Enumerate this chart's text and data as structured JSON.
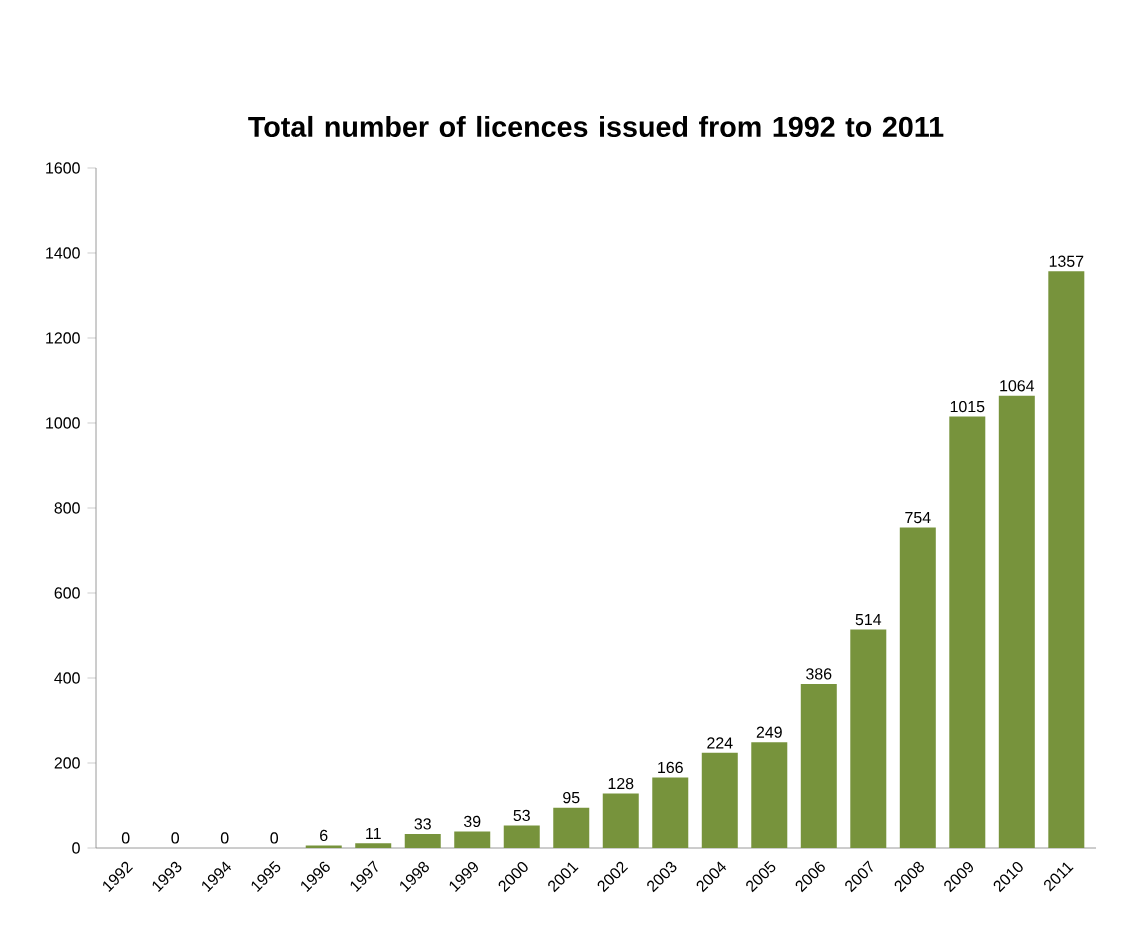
{
  "chart_data": {
    "type": "bar",
    "title": "Total number of licences issued from 1992 to 2011",
    "categories": [
      "1992",
      "1993",
      "1994",
      "1995",
      "1996",
      "1997",
      "1998",
      "1999",
      "2000",
      "2001",
      "2002",
      "2003",
      "2004",
      "2005",
      "2006",
      "2007",
      "2008",
      "2009",
      "2010",
      "2011"
    ],
    "values": [
      0,
      0,
      0,
      0,
      6,
      11,
      33,
      39,
      53,
      95,
      128,
      166,
      224,
      249,
      386,
      514,
      754,
      1015,
      1064,
      1357
    ],
    "color": "#77933c",
    "ylim": [
      0,
      1600
    ],
    "yticks": [
      0,
      200,
      400,
      600,
      800,
      1000,
      1200,
      1400,
      1600
    ],
    "data_labels": true
  }
}
